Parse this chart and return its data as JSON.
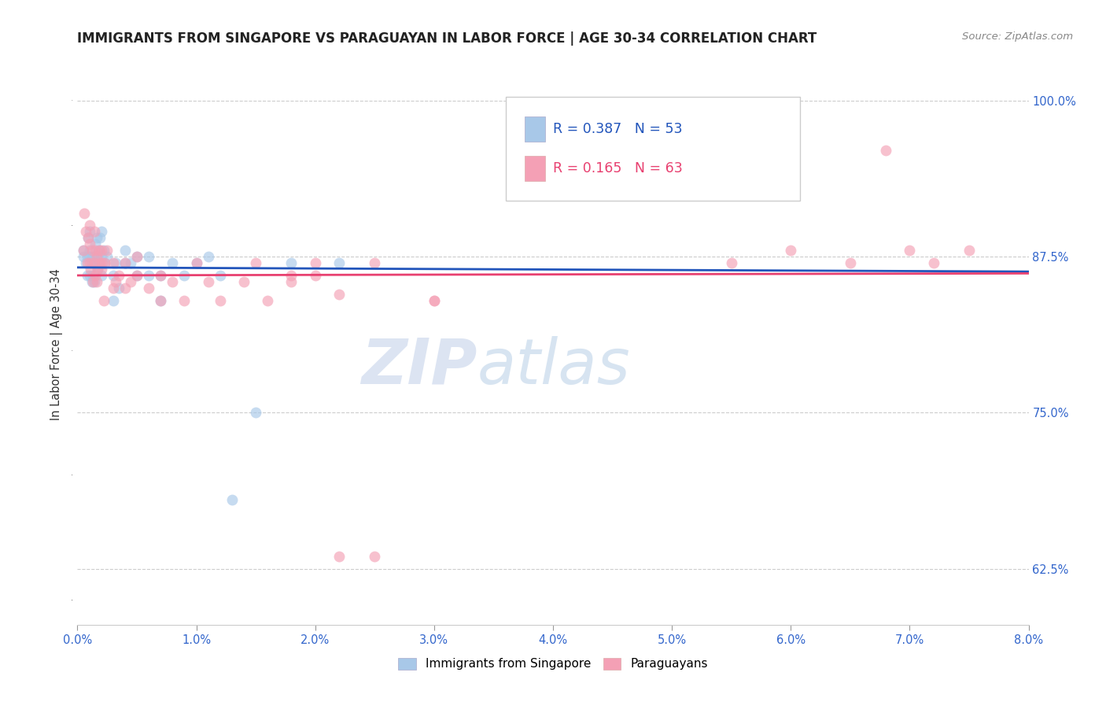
{
  "title": "IMMIGRANTS FROM SINGAPORE VS PARAGUAYAN IN LABOR FORCE | AGE 30-34 CORRELATION CHART",
  "source": "Source: ZipAtlas.com",
  "ylabel": "In Labor Force | Age 30-34",
  "legend_entries": [
    "Immigrants from Singapore",
    "Paraguayans"
  ],
  "r_singapore": 0.387,
  "n_singapore": 53,
  "r_paraguayan": 0.165,
  "n_paraguayan": 63,
  "xlim": [
    0.0,
    0.08
  ],
  "ylim": [
    0.58,
    1.03
  ],
  "xticks": [
    0.0,
    0.01,
    0.02,
    0.03,
    0.04,
    0.05,
    0.06,
    0.07,
    0.08
  ],
  "xtick_labels": [
    "0.0%",
    "1.0%",
    "2.0%",
    "3.0%",
    "4.0%",
    "5.0%",
    "6.0%",
    "7.0%",
    "8.0%"
  ],
  "yticks_right": [
    0.625,
    0.75,
    0.875,
    1.0
  ],
  "ytick_labels_right": [
    "62.5%",
    "75.0%",
    "87.5%",
    "100.0%"
  ],
  "color_singapore": "#a8c8e8",
  "color_paraguayan": "#f4a0b5",
  "line_color_singapore": "#2255bb",
  "line_color_paraguayan": "#e84070",
  "watermark_zip": "ZIP",
  "watermark_atlas": "atlas",
  "singapore_x": [
    0.0005,
    0.0005,
    0.0007,
    0.0008,
    0.0008,
    0.0009,
    0.001,
    0.001,
    0.001,
    0.001,
    0.0012,
    0.0012,
    0.0013,
    0.0013,
    0.0014,
    0.0014,
    0.0015,
    0.0015,
    0.0016,
    0.0016,
    0.0017,
    0.0018,
    0.0018,
    0.0019,
    0.002,
    0.002,
    0.002,
    0.0022,
    0.0023,
    0.0025,
    0.003,
    0.003,
    0.0032,
    0.0035,
    0.004,
    0.004,
    0.0045,
    0.005,
    0.005,
    0.006,
    0.006,
    0.007,
    0.007,
    0.008,
    0.009,
    0.01,
    0.011,
    0.012,
    0.013,
    0.015,
    0.018,
    0.022,
    0.04
  ],
  "singapore_y": [
    0.875,
    0.88,
    0.87,
    0.86,
    0.875,
    0.89,
    0.86,
    0.875,
    0.88,
    0.895,
    0.855,
    0.87,
    0.86,
    0.875,
    0.855,
    0.87,
    0.875,
    0.885,
    0.875,
    0.89,
    0.865,
    0.87,
    0.88,
    0.89,
    0.86,
    0.875,
    0.895,
    0.88,
    0.87,
    0.875,
    0.84,
    0.86,
    0.87,
    0.85,
    0.87,
    0.88,
    0.87,
    0.86,
    0.875,
    0.86,
    0.875,
    0.84,
    0.86,
    0.87,
    0.86,
    0.87,
    0.875,
    0.86,
    0.68,
    0.75,
    0.87,
    0.87,
    0.96
  ],
  "paraguayan_x": [
    0.0005,
    0.0006,
    0.0007,
    0.0008,
    0.0009,
    0.001,
    0.001,
    0.001,
    0.0011,
    0.0012,
    0.0013,
    0.0014,
    0.0014,
    0.0015,
    0.0015,
    0.0016,
    0.0016,
    0.0017,
    0.0018,
    0.0019,
    0.002,
    0.002,
    0.0021,
    0.0022,
    0.0023,
    0.0025,
    0.003,
    0.003,
    0.0032,
    0.0035,
    0.004,
    0.004,
    0.0045,
    0.005,
    0.005,
    0.006,
    0.007,
    0.007,
    0.008,
    0.009,
    0.01,
    0.011,
    0.012,
    0.014,
    0.015,
    0.016,
    0.018,
    0.02,
    0.022,
    0.025,
    0.03,
    0.018,
    0.02,
    0.055,
    0.06,
    0.065,
    0.068,
    0.07,
    0.072,
    0.075,
    0.022,
    0.025,
    0.03
  ],
  "paraguayan_y": [
    0.88,
    0.91,
    0.895,
    0.87,
    0.89,
    0.87,
    0.885,
    0.9,
    0.865,
    0.88,
    0.855,
    0.87,
    0.895,
    0.86,
    0.88,
    0.855,
    0.875,
    0.865,
    0.88,
    0.87,
    0.865,
    0.88,
    0.87,
    0.84,
    0.87,
    0.88,
    0.85,
    0.87,
    0.855,
    0.86,
    0.85,
    0.87,
    0.855,
    0.86,
    0.875,
    0.85,
    0.84,
    0.86,
    0.855,
    0.84,
    0.87,
    0.855,
    0.84,
    0.855,
    0.87,
    0.84,
    0.855,
    0.86,
    0.845,
    0.87,
    0.84,
    0.86,
    0.87,
    0.87,
    0.88,
    0.87,
    0.96,
    0.88,
    0.87,
    0.88,
    0.635,
    0.635,
    0.84
  ]
}
